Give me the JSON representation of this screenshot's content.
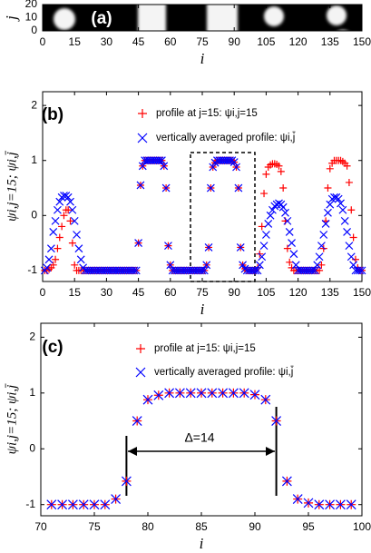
{
  "chart_data": [
    {
      "type": "image",
      "title": "(a)",
      "xlabel": "i",
      "ylabel": "j",
      "xlim": [
        0,
        150
      ],
      "ylim": [
        0,
        20
      ],
      "xticks": [
        0,
        15,
        30,
        45,
        60,
        75,
        90,
        105,
        120,
        135,
        150
      ],
      "yticks": [
        0,
        10,
        20
      ]
    },
    {
      "type": "scatter",
      "title": "(b)",
      "xlabel": "i",
      "ylabel": "ψi,j=15; ψi,j̄",
      "xlim": [
        0,
        150
      ],
      "ylim": [
        -1.2,
        2.25
      ],
      "xticks": [
        0,
        15,
        30,
        45,
        60,
        75,
        90,
        105,
        120,
        135,
        150
      ],
      "yticks": [
        -1,
        0,
        1,
        2
      ],
      "x": [
        1,
        2,
        3,
        4,
        5,
        6,
        7,
        8,
        9,
        10,
        11,
        12,
        13,
        14,
        15,
        16,
        17,
        18,
        19,
        20,
        21,
        22,
        23,
        24,
        25,
        26,
        27,
        28,
        29,
        30,
        31,
        32,
        33,
        34,
        35,
        36,
        37,
        38,
        39,
        40,
        41,
        42,
        43,
        44,
        45,
        46,
        47,
        48,
        49,
        50,
        51,
        52,
        53,
        54,
        55,
        56,
        57,
        58,
        59,
        60,
        61,
        62,
        63,
        64,
        65,
        66,
        67,
        68,
        69,
        70,
        71,
        72,
        73,
        74,
        75,
        76,
        77,
        78,
        79,
        80,
        81,
        82,
        83,
        84,
        85,
        86,
        87,
        88,
        89,
        90,
        91,
        92,
        93,
        94,
        95,
        96,
        97,
        98,
        99,
        100,
        101,
        102,
        103,
        104,
        105,
        106,
        107,
        108,
        109,
        110,
        111,
        112,
        113,
        114,
        115,
        116,
        117,
        118,
        119,
        120,
        121,
        122,
        123,
        124,
        125,
        126,
        127,
        128,
        129,
        130,
        131,
        132,
        133,
        134,
        135,
        136,
        137,
        138,
        139,
        140,
        141,
        142,
        143,
        144,
        145,
        146,
        147,
        148,
        149,
        150
      ],
      "series": [
        {
          "name": "profile at j=15: ψi,j=15",
          "color": "#ff0000",
          "marker": "+",
          "values": [
            -1,
            -1,
            -0.98,
            -0.95,
            -0.9,
            -0.8,
            -0.6,
            -0.4,
            -0.2,
            0,
            0.1,
            0.1,
            -0.1,
            -0.5,
            -0.9,
            -1,
            -1,
            -1,
            -1,
            -1,
            -1,
            -1,
            -1,
            -1,
            -1,
            -1,
            -1,
            -1,
            -1,
            -1,
            -1,
            -1,
            -1,
            -1,
            -1,
            -1,
            -1,
            -1,
            -1,
            -1,
            -1,
            -1,
            -1,
            -1,
            -0.5,
            0.55,
            0.9,
            1,
            1,
            1,
            1,
            1,
            1,
            1,
            1,
            1,
            0.9,
            0.5,
            -0.55,
            -0.9,
            -1,
            -1,
            -1,
            -1,
            -1,
            -1,
            -1,
            -1,
            -1,
            -1,
            -1,
            -1,
            -1,
            -1,
            -1,
            -1,
            -0.9,
            -0.58,
            0.5,
            0.88,
            0.96,
            1,
            1,
            1,
            1,
            1,
            1,
            1,
            1,
            0.97,
            0.88,
            0.5,
            -0.58,
            -0.9,
            -0.97,
            -1,
            -1,
            -1,
            -1,
            -1,
            -0.95,
            -0.7,
            -0.2,
            0.4,
            0.75,
            0.88,
            0.92,
            0.94,
            0.94,
            0.93,
            0.9,
            0.8,
            0.5,
            -0.1,
            -0.6,
            -0.85,
            -0.95,
            -1,
            -1,
            -1,
            -1,
            -1,
            -1,
            -1,
            -1,
            -1,
            -1,
            -1,
            -1,
            -1,
            -0.9,
            -0.6,
            -0.1,
            0.5,
            0.85,
            0.95,
            1,
            1,
            1,
            1,
            0.98,
            0.95,
            0.9,
            0.6,
            0.1,
            -0.4,
            -0.8,
            -0.95,
            -1,
            -1
          ]
        },
        {
          "name": "vertically averaged profile: ψi,j̄",
          "color": "#0000ff",
          "marker": "x",
          "values": [
            -1,
            -0.95,
            -0.8,
            -0.6,
            -0.3,
            -0.1,
            0.1,
            0.25,
            0.33,
            0.36,
            0.36,
            0.33,
            0.25,
            0.1,
            -0.1,
            -0.35,
            -0.6,
            -0.8,
            -0.95,
            -1,
            -1,
            -1,
            -1,
            -1,
            -1,
            -1,
            -1,
            -1,
            -1,
            -1,
            -1,
            -1,
            -1,
            -1,
            -1,
            -1,
            -1,
            -1,
            -1,
            -1,
            -1,
            -1,
            -1,
            -1,
            -0.5,
            0.55,
            0.9,
            1,
            1,
            1,
            1,
            1,
            1,
            1,
            1,
            1,
            0.9,
            0.5,
            -0.55,
            -0.9,
            -1,
            -1,
            -1,
            -1,
            -1,
            -1,
            -1,
            -1,
            -1,
            -1,
            -1,
            -1,
            -1,
            -1,
            -1,
            -1,
            -0.9,
            -0.58,
            0.5,
            0.88,
            0.96,
            1,
            1,
            1,
            1,
            1,
            1,
            1,
            1,
            0.97,
            0.88,
            0.5,
            -0.58,
            -0.9,
            -0.97,
            -1,
            -1,
            -1,
            -1,
            -1,
            -1,
            -0.9,
            -0.75,
            -0.55,
            -0.35,
            -0.15,
            0,
            0.1,
            0.17,
            0.2,
            0.22,
            0.2,
            0.15,
            0.05,
            -0.1,
            -0.3,
            -0.5,
            -0.7,
            -0.9,
            -1,
            -1,
            -1,
            -1,
            -1,
            -1,
            -1,
            -1,
            -1,
            -0.9,
            -0.75,
            -0.55,
            -0.35,
            -0.15,
            0.05,
            0.2,
            0.3,
            0.33,
            0.33,
            0.3,
            0.22,
            0.1,
            -0.1,
            -0.3,
            -0.55,
            -0.75,
            -0.9,
            -1,
            -1,
            -1,
            -1
          ]
        }
      ]
    },
    {
      "type": "scatter",
      "title": "(c)",
      "xlabel": "i",
      "ylabel": "ψi,j=15; ψi,j̄",
      "xlim": [
        70,
        100
      ],
      "ylim": [
        -1.2,
        2.25
      ],
      "xticks": [
        70,
        75,
        80,
        85,
        90,
        95,
        100
      ],
      "yticks": [
        -1,
        0,
        1,
        2
      ],
      "annotation": "Δ=14",
      "x": [
        71,
        72,
        73,
        74,
        75,
        76,
        77,
        78,
        79,
        80,
        81,
        82,
        83,
        84,
        85,
        86,
        87,
        88,
        89,
        90,
        91,
        92,
        93,
        94,
        95,
        96,
        97,
        98,
        99
      ],
      "series": [
        {
          "name": "profile at j=15: ψi,j=15",
          "color": "#ff0000",
          "marker": "+",
          "values": [
            -1,
            -1,
            -1,
            -1,
            -1,
            -1,
            -0.9,
            -0.58,
            0.5,
            0.88,
            0.96,
            1,
            1,
            1,
            1,
            1,
            1,
            1,
            1,
            0.97,
            0.88,
            0.5,
            -0.58,
            -0.9,
            -0.97,
            -1,
            -1,
            -1,
            -1
          ]
        },
        {
          "name": "vertically averaged profile: ψi,j̄",
          "color": "#0000ff",
          "marker": "x",
          "values": [
            -1,
            -1,
            -1,
            -1,
            -1,
            -1,
            -0.9,
            -0.58,
            0.5,
            0.88,
            0.96,
            1,
            1,
            1,
            1,
            1,
            1,
            1,
            1,
            0.97,
            0.88,
            0.5,
            -0.58,
            -0.9,
            -0.97,
            -1,
            -1,
            -1,
            -1
          ]
        }
      ]
    }
  ]
}
